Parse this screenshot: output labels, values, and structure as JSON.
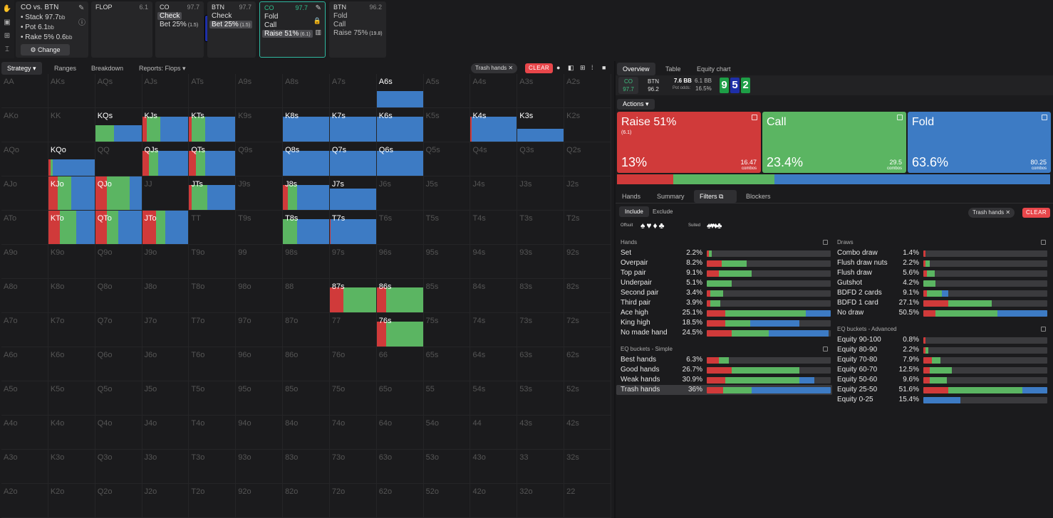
{
  "sidebar_icons": [
    "hand-icon",
    "save-icon",
    "gamepad-icon",
    "text-cursor-icon"
  ],
  "matchup": {
    "title": "CO vs. BTN",
    "stack_label": "• Stack",
    "stack_value": "97.7",
    "stack_unit": "bb",
    "pot_label": "• Pot",
    "pot_value": "6.1",
    "pot_unit": "bb",
    "rake_label": "• Rake",
    "rake_pct": "5%",
    "rake_value": "0.6",
    "rake_unit": "bb",
    "change_label": "Change"
  },
  "flop": {
    "label": "FLOP",
    "pot": "6.1",
    "cards": [
      {
        "rank": "9",
        "color": "#1d9e46"
      },
      {
        "rank": "5",
        "color": "#1e2fa8"
      },
      {
        "rank": "2",
        "color": "#1d9e46"
      }
    ]
  },
  "history": [
    {
      "pos": "CO",
      "stack": "97.7",
      "lines": [
        "Check",
        "Bet 25%"
      ],
      "sizes": [
        "",
        "(1.5)"
      ],
      "hl": 0
    },
    {
      "pos": "BTN",
      "stack": "97.7",
      "lines": [
        "Check",
        "Bet 25%"
      ],
      "sizes": [
        "",
        "(1.5)"
      ],
      "hl": 1
    },
    {
      "pos": "CO",
      "stack": "97.7",
      "lines": [
        "Fold",
        "Call",
        "Raise 51%"
      ],
      "sizes": [
        "",
        "",
        "(6.1)"
      ],
      "hl": 2
    },
    {
      "pos": "BTN",
      "stack": "96.2",
      "lines": [
        "Fold",
        "Call",
        "Raise 75%"
      ],
      "sizes": [
        "",
        "",
        "(19.8)"
      ],
      "hl": -1
    }
  ],
  "main_tabs": {
    "strategy": "Strategy",
    "ranges": "Ranges",
    "breakdown": "Breakdown",
    "reports": "Reports: Flops"
  },
  "filter_chip": {
    "label": "Trash hands",
    "clear": "CLEAR"
  },
  "colors": {
    "raise": "#d03a3a",
    "call": "#5bb562",
    "fold": "#3d7bc4",
    "empty": "#3b3b3e"
  },
  "grid": {
    "ranks": [
      "A",
      "K",
      "Q",
      "J",
      "T",
      "9",
      "8",
      "7",
      "6",
      "5",
      "4",
      "3",
      "2"
    ],
    "freq": {
      "A6s": [
        0,
        0,
        1
      ],
      "KQs": [
        0,
        0.4,
        0.6
      ],
      "KJs": [
        0.1,
        0.3,
        0.6
      ],
      "KTs": [
        0.05,
        0.3,
        0.65
      ],
      "K8s": [
        0,
        0,
        1
      ],
      "K7s": [
        0,
        0,
        1
      ],
      "K6s": [
        0,
        0,
        1
      ],
      "K4s": [
        0.02,
        0,
        0.98
      ],
      "K3s": [
        0,
        0,
        1
      ],
      "KQo": [
        0.05,
        0.05,
        0.9
      ],
      "QJs": [
        0.15,
        0.2,
        0.65
      ],
      "QTs": [
        0.15,
        0.2,
        0.65
      ],
      "Q8s": [
        0,
        0,
        1
      ],
      "Q7s": [
        0,
        0,
        1
      ],
      "Q6s": [
        0,
        0,
        1
      ],
      "KJo": [
        0.2,
        0.3,
        0.5
      ],
      "QJo": [
        0.25,
        0.5,
        0.25
      ],
      "JTs": [
        0.05,
        0.35,
        0.6
      ],
      "J8s": [
        0.1,
        0.2,
        0.7
      ],
      "J7s": [
        0,
        0,
        1
      ],
      "KTo": [
        0.25,
        0.35,
        0.4
      ],
      "QTo": [
        0.25,
        0.25,
        0.5
      ],
      "JTo": [
        0.3,
        0.2,
        0.5
      ],
      "T8s": [
        0,
        0.3,
        0.7
      ],
      "T7s": [
        0.02,
        0,
        0.98
      ],
      "87s": [
        0.3,
        0.7,
        0
      ],
      "86s": [
        0.2,
        0.8,
        0
      ],
      "76s": [
        0.2,
        0.8,
        0
      ]
    },
    "height": {
      "A6s": 0.5,
      "KQs": 0.5,
      "KJs": 0.75,
      "KTs": 0.75,
      "K8s": 0.75,
      "K7s": 0.75,
      "K6s": 0.75,
      "K4s": 0.75,
      "K3s": 0.4,
      "KQo": 0.5,
      "QJs": 0.75,
      "QTs": 0.75,
      "Q8s": 0.75,
      "Q7s": 0.75,
      "Q6s": 0.75,
      "KJo": 1,
      "QJo": 1,
      "JTs": 0.75,
      "J8s": 0.75,
      "J7s": 0.65,
      "KTo": 1,
      "QTo": 1,
      "JTo": 1,
      "T8s": 0.75,
      "T7s": 0.75,
      "87s": 0.75,
      "86s": 0.75,
      "76s": 0.75
    }
  },
  "right_tabs": {
    "overview": "Overview",
    "table": "Table",
    "equity": "Equity chart"
  },
  "summary": {
    "p1": "CO",
    "p1_stack": "97.7",
    "p2": "BTN",
    "p2_stack": "96.2",
    "pot_bb": "7.6 BB",
    "to_call": "6.1 BB",
    "pot_odds_label": "Pot odds:",
    "pot_odds": "16.5%"
  },
  "actions_label": "Actions",
  "action_boxes": [
    {
      "name": "Raise 51%",
      "sub": "(6.1)",
      "pct": "13%",
      "combos": "16.47",
      "combos_label": "combos",
      "color": "#d03a3a"
    },
    {
      "name": "Call",
      "sub": "",
      "pct": "23.4%",
      "combos": "29.5",
      "combos_label": "combos",
      "color": "#5bb562"
    },
    {
      "name": "Fold",
      "sub": "",
      "pct": "63.6%",
      "combos": "80.25",
      "combos_label": "combos",
      "color": "#3d7bc4"
    }
  ],
  "freq_bar": [
    0.13,
    0.234,
    0.636
  ],
  "sub_tabs": {
    "hands": "Hands",
    "summary": "Summary",
    "filters": "Filters",
    "blockers": "Blockers"
  },
  "include": "Include",
  "exclude": "Exclude",
  "offsuit": "Offsuit",
  "suited": "Suited",
  "hands_title": "Hands",
  "draws_title": "Draws",
  "eq_simple_title": "EQ buckets - Simple",
  "eq_adv_title": "EQ buckets - Advanced",
  "hands": [
    {
      "n": "Set",
      "v": "2.2%",
      "b": [
        0.02,
        0.02,
        0
      ]
    },
    {
      "n": "Overpair",
      "v": "8.2%",
      "b": [
        0.12,
        0.2,
        0
      ]
    },
    {
      "n": "Top pair",
      "v": "9.1%",
      "b": [
        0.1,
        0.26,
        0
      ]
    },
    {
      "n": "Underpair",
      "v": "5.1%",
      "b": [
        0,
        0.2,
        0
      ]
    },
    {
      "n": "Second pair",
      "v": "3.4%",
      "b": [
        0.03,
        0.1,
        0
      ]
    },
    {
      "n": "Third pair",
      "v": "3.9%",
      "b": [
        0.03,
        0.08,
        0
      ]
    },
    {
      "n": "Ace high",
      "v": "25.1%",
      "b": [
        0.15,
        0.65,
        0.2
      ]
    },
    {
      "n": "King high",
      "v": "18.5%",
      "b": [
        0.15,
        0.2,
        0.4
      ]
    },
    {
      "n": "No made hand",
      "v": "24.5%",
      "b": [
        0.2,
        0.3,
        0.48
      ]
    }
  ],
  "eq_simple": [
    {
      "n": "Best hands",
      "v": "6.3%",
      "b": [
        0.1,
        0.08,
        0
      ]
    },
    {
      "n": "Good hands",
      "v": "26.7%",
      "b": [
        0.2,
        0.55,
        0
      ]
    },
    {
      "n": "Weak hands",
      "v": "30.9%",
      "b": [
        0.15,
        0.6,
        0.12
      ]
    },
    {
      "n": "Trash hands",
      "v": "36%",
      "b": [
        0.13,
        0.23,
        0.64
      ]
    }
  ],
  "draws": [
    {
      "n": "Combo draw",
      "v": "1.4%",
      "b": [
        0.02,
        0,
        0
      ]
    },
    {
      "n": "Flush draw nuts",
      "v": "2.2%",
      "b": [
        0.02,
        0.03,
        0
      ]
    },
    {
      "n": "Flush draw",
      "v": "5.6%",
      "b": [
        0.03,
        0.06,
        0
      ]
    },
    {
      "n": "Gutshot",
      "v": "4.2%",
      "b": [
        0,
        0.1,
        0
      ]
    },
    {
      "n": "BDFD 2 cards",
      "v": "9.1%",
      "b": [
        0.03,
        0.12,
        0.05
      ]
    },
    {
      "n": "BDFD 1 card",
      "v": "27.1%",
      "b": [
        0.2,
        0.35,
        0
      ]
    },
    {
      "n": "No draw",
      "v": "50.5%",
      "b": [
        0.1,
        0.5,
        0.4
      ]
    }
  ],
  "eq_adv": [
    {
      "n": "Equity 90-100",
      "v": "0.8%",
      "b": [
        0.02,
        0,
        0
      ]
    },
    {
      "n": "Equity 80-90",
      "v": "2.2%",
      "b": [
        0.02,
        0.02,
        0
      ]
    },
    {
      "n": "Equity 70-80",
      "v": "7.9%",
      "b": [
        0.07,
        0.07,
        0
      ]
    },
    {
      "n": "Equity 60-70",
      "v": "12.5%",
      "b": [
        0.05,
        0.18,
        0
      ]
    },
    {
      "n": "Equity 50-60",
      "v": "9.6%",
      "b": [
        0.05,
        0.14,
        0
      ]
    },
    {
      "n": "Equity 25-50",
      "v": "51.6%",
      "b": [
        0.2,
        0.6,
        0.2
      ]
    },
    {
      "n": "Equity 0-25",
      "v": "15.4%",
      "b": [
        0,
        0,
        0.3
      ]
    }
  ]
}
